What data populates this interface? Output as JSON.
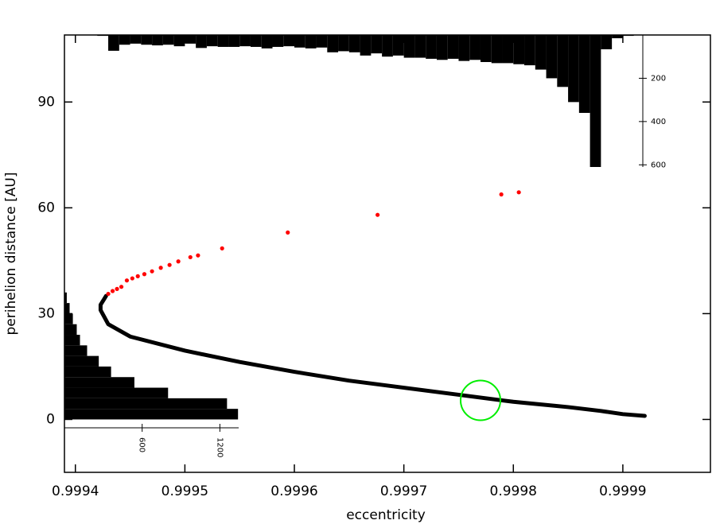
{
  "chart_data": [
    {
      "type": "scatter",
      "x_label": "eccentricity",
      "y_label": "perihelion distance [AU]",
      "xlim": [
        0.99939,
        0.99998
      ],
      "ylim": [
        -15,
        109
      ],
      "xticks": [
        0.9994,
        0.9995,
        0.9996,
        0.9997,
        0.9998,
        0.9999
      ],
      "yticks": [
        0,
        30,
        60,
        90
      ],
      "series": [
        {
          "color": "#000000",
          "style": "line",
          "x": [
            0.999428,
            0.999426,
            0.999423,
            0.999423,
            0.99943,
            0.99945,
            0.9995,
            0.99955,
            0.9996,
            0.99965,
            0.9997,
            0.99975,
            0.9998,
            0.99985,
            0.99988,
            0.9999,
            0.99992
          ],
          "values": [
            35,
            34,
            32.5,
            31,
            27,
            23.5,
            19.5,
            16.3,
            13.5,
            11,
            9,
            7,
            5,
            3.5,
            2.4,
            1.5,
            1
          ]
        },
        {
          "color": "#ff0000",
          "style": "dots",
          "x": [
            0.99943,
            0.999434,
            0.999438,
            0.999442,
            0.999447,
            0.999452,
            0.999457,
            0.999463,
            0.99947,
            0.999478,
            0.999486,
            0.999494,
            0.999505,
            0.999512,
            0.999534,
            0.999594,
            0.999676,
            0.999789,
            0.999805
          ],
          "values": [
            35.6,
            36.4,
            37,
            37.6,
            39.4,
            40,
            40.6,
            41.2,
            42,
            43,
            43.8,
            44.8,
            46,
            46.5,
            48.5,
            53,
            58,
            63.8,
            64.4
          ]
        }
      ],
      "highlight": {
        "x": 0.99977,
        "y": 5.4,
        "color": "#00ee00"
      }
    },
    {
      "type": "histogram",
      "orientation": "down",
      "color": "#000000",
      "bins": [
        0.99942,
        0.99943,
        0.99944,
        0.99945,
        0.99946,
        0.99947,
        0.99948,
        0.99949,
        0.9995,
        0.99951,
        0.99952,
        0.99953,
        0.99954,
        0.99955,
        0.99956,
        0.99957,
        0.99958,
        0.99959,
        0.9996,
        0.99961,
        0.99962,
        0.99963,
        0.99964,
        0.99965,
        0.99966,
        0.99967,
        0.99968,
        0.99969,
        0.9997,
        0.99971,
        0.99972,
        0.99973,
        0.99974,
        0.99975,
        0.99976,
        0.99977,
        0.99978,
        0.99979,
        0.9998,
        0.99981,
        0.99982,
        0.99983,
        0.99984,
        0.99985,
        0.99986,
        0.99987,
        0.99988,
        0.99989,
        0.9999,
        0.99991
      ],
      "values": [
        4,
        73,
        45,
        40,
        45,
        48,
        45,
        52,
        40,
        60,
        52,
        55,
        55,
        52,
        55,
        62,
        55,
        52,
        58,
        62,
        58,
        80,
        75,
        80,
        95,
        85,
        100,
        95,
        105,
        105,
        110,
        115,
        110,
        120,
        115,
        125,
        130,
        130,
        135,
        140,
        160,
        200,
        240,
        310,
        360,
        610,
        66,
        15,
        4
      ],
      "ylim": [
        0,
        610
      ],
      "yticks": [
        200,
        400,
        600
      ]
    },
    {
      "type": "histogram",
      "orientation": "right",
      "color": "#000000",
      "bins": [
        0,
        3,
        6,
        9,
        12,
        15,
        18,
        21,
        24,
        27,
        30,
        33,
        36
      ],
      "values": [
        1340,
        1255,
        800,
        540,
        360,
        265,
        175,
        120,
        95,
        65,
        40,
        18
      ],
      "xlim": [
        0,
        1345
      ],
      "xticks": [
        600,
        1200
      ]
    }
  ]
}
